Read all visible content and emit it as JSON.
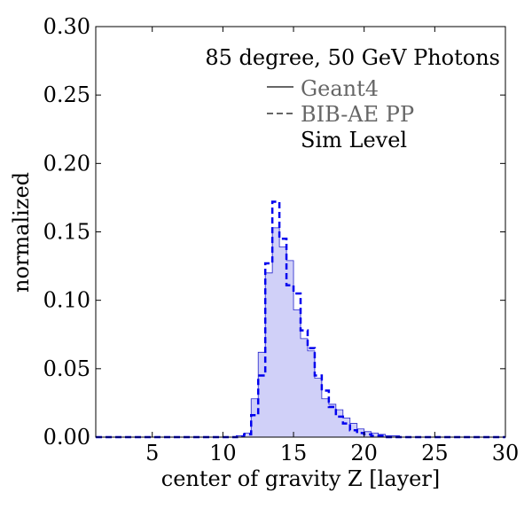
{
  "chart_data": {
    "type": "histogram",
    "annotation": "85 degree, 50 GeV Photons",
    "xlabel": "center of gravity Z [layer]",
    "ylabel": "normalized",
    "xlim": [
      1,
      30
    ],
    "ylim": [
      0,
      0.3
    ],
    "x_ticks": [
      5,
      10,
      15,
      20,
      25,
      30
    ],
    "y_ticks": [
      0.0,
      0.05,
      0.1,
      0.15,
      0.2,
      0.25,
      0.3
    ],
    "x_tick_labels": [
      "5",
      "10",
      "15",
      "20",
      "25",
      "30"
    ],
    "y_tick_labels": [
      "0.00",
      "0.05",
      "0.10",
      "0.15",
      "0.20",
      "0.25",
      "0.30"
    ],
    "bin_width": 0.5,
    "bin_edges_start": 1,
    "series": [
      {
        "name": "Geant4",
        "style": "filled-step",
        "values": [
          0,
          0,
          0,
          0,
          0,
          0,
          0,
          0,
          0,
          0,
          0,
          0,
          0,
          0,
          0,
          0,
          0,
          0,
          0,
          0,
          0.001,
          0.003,
          0.028,
          0.062,
          0.12,
          0.153,
          0.139,
          0.129,
          0.093,
          0.072,
          0.063,
          0.043,
          0.028,
          0.024,
          0.02,
          0.014,
          0.01,
          0.006,
          0.004,
          0.003,
          0.002,
          0.001,
          0.001,
          0,
          0,
          0,
          0,
          0,
          0,
          0,
          0,
          0,
          0,
          0,
          0,
          0,
          0,
          0
        ],
        "color": "#2222cc",
        "fill": "#d0d0f8"
      },
      {
        "name": "BIB-AE PP",
        "style": "dashed-step",
        "values": [
          0,
          0,
          0,
          0,
          0,
          0,
          0,
          0,
          0,
          0,
          0,
          0,
          0,
          0,
          0,
          0,
          0,
          0,
          0,
          0,
          0.0005,
          0.002,
          0.016,
          0.045,
          0.127,
          0.172,
          0.145,
          0.111,
          0.105,
          0.078,
          0.065,
          0.045,
          0.034,
          0.022,
          0.015,
          0.01,
          0.005,
          0.003,
          0.002,
          0.001,
          0.001,
          0,
          0,
          0,
          0,
          0,
          0,
          0,
          0,
          0,
          0,
          0,
          0,
          0,
          0,
          0,
          0,
          0
        ],
        "color": "#0000ee"
      }
    ],
    "legend": {
      "placement": "top-right",
      "entries": [
        {
          "label": "Geant4",
          "line_style": "solid"
        },
        {
          "label": "BIB-AE PP",
          "line_style": "dashed"
        },
        {
          "label": "Sim Level",
          "line_style": "none"
        }
      ],
      "legend_text_color": "#666666",
      "extra_text_color": "#000000"
    },
    "grid": false
  }
}
